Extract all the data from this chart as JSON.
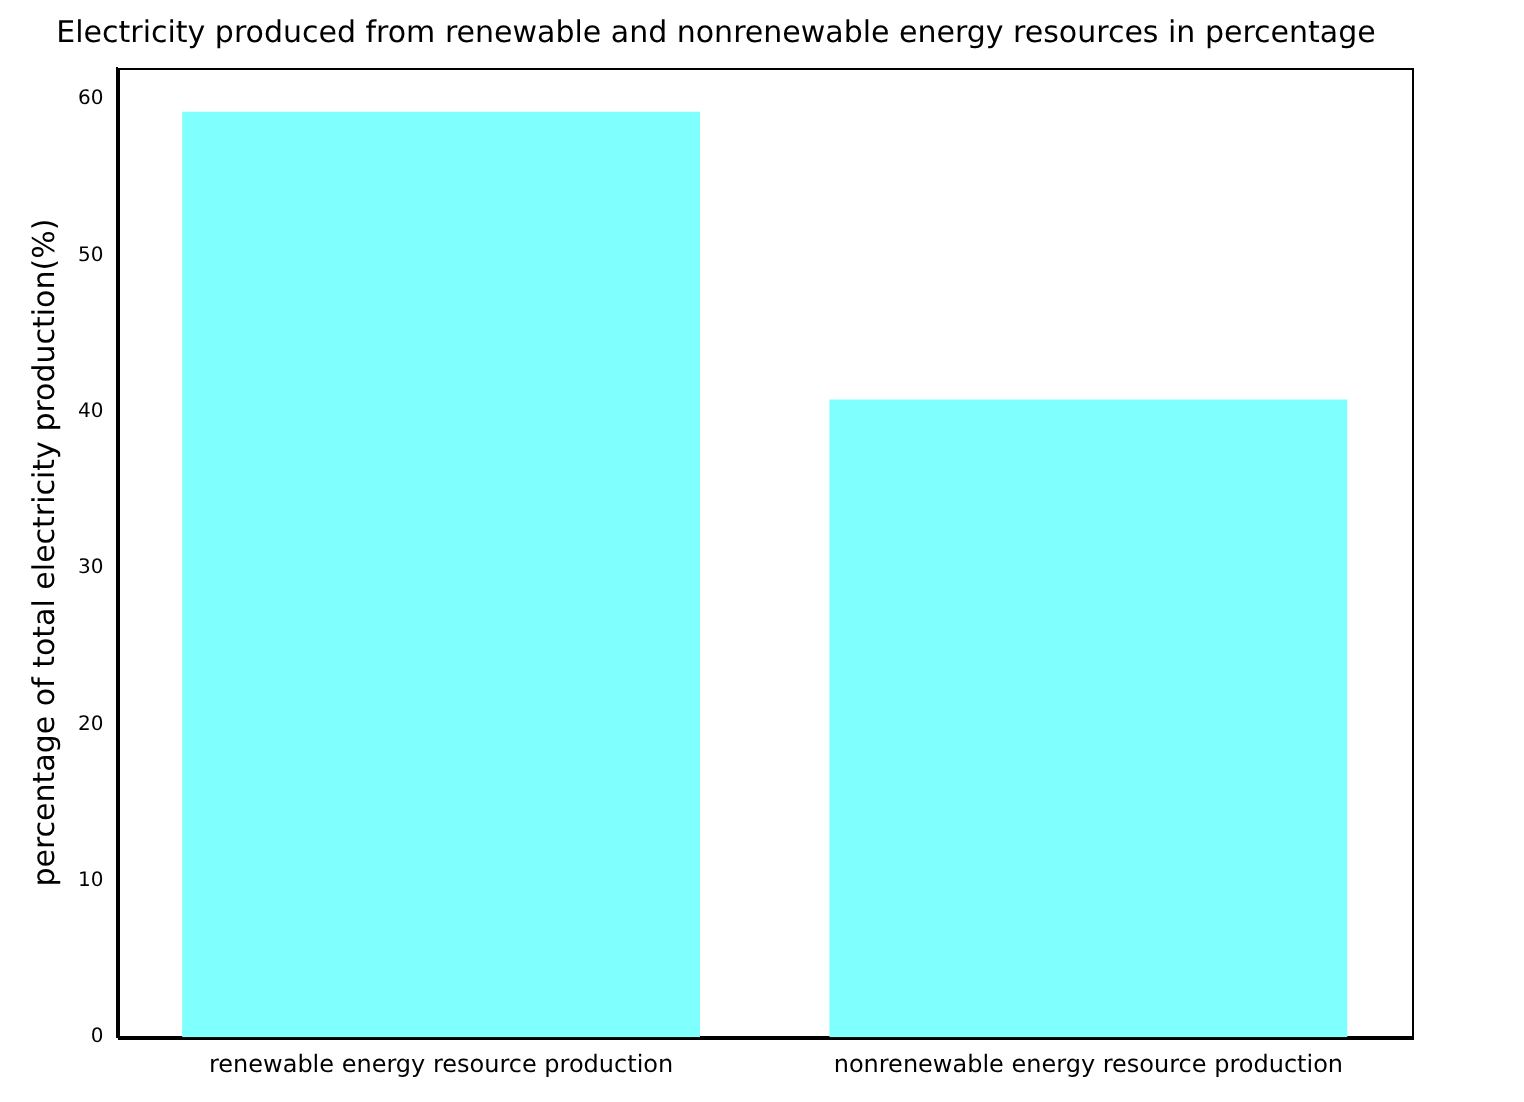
{
  "chart_data": {
    "type": "bar",
    "title": "Electricity produced from renewable and nonrenewable energy resources in percentage",
    "ylabel": "percentage of total electricity production(%)",
    "categories": [
      "renewable energy resource production",
      "nonrenewable energy resource production"
    ],
    "values": [
      59.2,
      40.8
    ],
    "color": "#80ffff",
    "ylim": [
      0,
      62
    ],
    "yticks": [
      0,
      10,
      20,
      30,
      40,
      50,
      60
    ],
    "grid": false,
    "legend": false
  }
}
